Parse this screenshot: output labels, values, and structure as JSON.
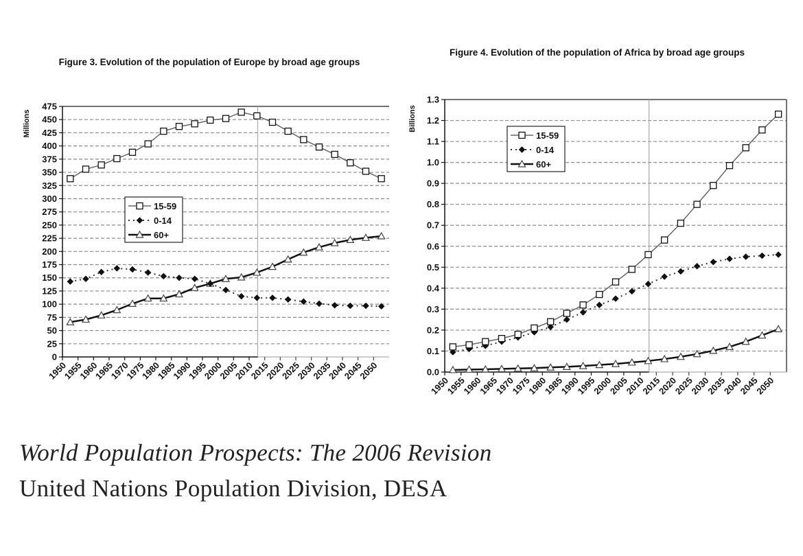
{
  "chart_data": [
    {
      "type": "line",
      "title": "Figure 3.  Evolution of the population of Europe by broad age groups",
      "xlabel": "",
      "ylabel": "Millions",
      "ylim": [
        0,
        475
      ],
      "y_ticks": [
        0,
        25,
        50,
        75,
        100,
        125,
        150,
        175,
        200,
        225,
        250,
        275,
        300,
        325,
        350,
        375,
        400,
        425,
        450,
        475
      ],
      "y_tick_labels": [
        "0",
        "25",
        "50",
        "75",
        "100",
        "125",
        "150",
        "175",
        "200",
        "225",
        "250",
        "275",
        "300",
        "325",
        "350",
        "375",
        "400",
        "425",
        "450",
        "475"
      ],
      "categories": [
        "1950",
        "1955",
        "1960",
        "1965",
        "1970",
        "1975",
        "1980",
        "1985",
        "1990",
        "1995",
        "2000",
        "2005",
        "2010",
        "2015",
        "2020",
        "2025",
        "2030",
        "2035",
        "2040",
        "2045",
        "2050"
      ],
      "projection_start": "2005",
      "grid": true,
      "legend_position": "center-left",
      "series": [
        {
          "name": "15-59",
          "marker": "square",
          "style": "thin-solid",
          "values": [
            338,
            356,
            364,
            376,
            388,
            404,
            428,
            437,
            442,
            449,
            452,
            464,
            457,
            445,
            428,
            412,
            398,
            384,
            368,
            352,
            338
          ]
        },
        {
          "name": "0-14",
          "marker": "diamond",
          "style": "dotted",
          "values": [
            143,
            148,
            161,
            168,
            166,
            160,
            153,
            150,
            148,
            139,
            127,
            115,
            112,
            112,
            109,
            105,
            101,
            98,
            97,
            97,
            96
          ]
        },
        {
          "name": "60+",
          "marker": "triangle",
          "style": "thick-solid",
          "values": [
            66,
            71,
            79,
            89,
            101,
            111,
            111,
            119,
            131,
            139,
            148,
            151,
            160,
            171,
            185,
            198,
            208,
            216,
            222,
            226,
            229
          ]
        }
      ]
    },
    {
      "type": "line",
      "title": "Figure 4.  Evolution of the population of Africa by broad age groups",
      "xlabel": "",
      "ylabel": "Billions",
      "ylim": [
        0,
        1.3
      ],
      "y_ticks": [
        0,
        0.1,
        0.2,
        0.3,
        0.4,
        0.5,
        0.6,
        0.7,
        0.8,
        0.9,
        1.0,
        1.1,
        1.2,
        1.3
      ],
      "y_tick_labels": [
        "0.0",
        "0.1",
        "0.2",
        "0.3",
        "0.4",
        "0.5",
        "0.6",
        "0.7",
        "0.8",
        "0.9",
        "1.0",
        "1.1",
        "1.2",
        "1.3"
      ],
      "categories": [
        "1950",
        "1955",
        "1960",
        "1965",
        "1970",
        "1975",
        "1980",
        "1985",
        "1990",
        "1995",
        "2000",
        "2005",
        "2010",
        "2015",
        "2020",
        "2025",
        "2030",
        "2035",
        "2040",
        "2045",
        "2050"
      ],
      "projection_start": "2005",
      "grid": true,
      "legend_position": "top-left",
      "series": [
        {
          "name": "15-59",
          "marker": "square",
          "style": "thin-solid",
          "values": [
            0.12,
            0.13,
            0.145,
            0.16,
            0.18,
            0.21,
            0.24,
            0.28,
            0.32,
            0.37,
            0.43,
            0.49,
            0.56,
            0.63,
            0.71,
            0.8,
            0.89,
            0.985,
            1.07,
            1.155,
            1.23
          ]
        },
        {
          "name": "0-14",
          "marker": "diamond",
          "style": "dotted",
          "values": [
            0.095,
            0.11,
            0.125,
            0.145,
            0.165,
            0.19,
            0.215,
            0.25,
            0.285,
            0.32,
            0.35,
            0.385,
            0.42,
            0.455,
            0.48,
            0.505,
            0.525,
            0.54,
            0.55,
            0.555,
            0.56
          ]
        },
        {
          "name": "60+",
          "marker": "triangle",
          "style": "thick-solid",
          "values": [
            0.01,
            0.012,
            0.013,
            0.015,
            0.017,
            0.019,
            0.022,
            0.025,
            0.029,
            0.034,
            0.039,
            0.046,
            0.053,
            0.062,
            0.073,
            0.086,
            0.102,
            0.12,
            0.145,
            0.175,
            0.205
          ]
        }
      ]
    }
  ],
  "footer": {
    "line1": "World Population Prospects: The 2006 Revision",
    "line2": "United Nations Population Division, DESA"
  },
  "colors": {
    "series_line": "#555555",
    "axis": "#111111",
    "grid": "#999999",
    "projection_line": "#aaaaaa"
  }
}
